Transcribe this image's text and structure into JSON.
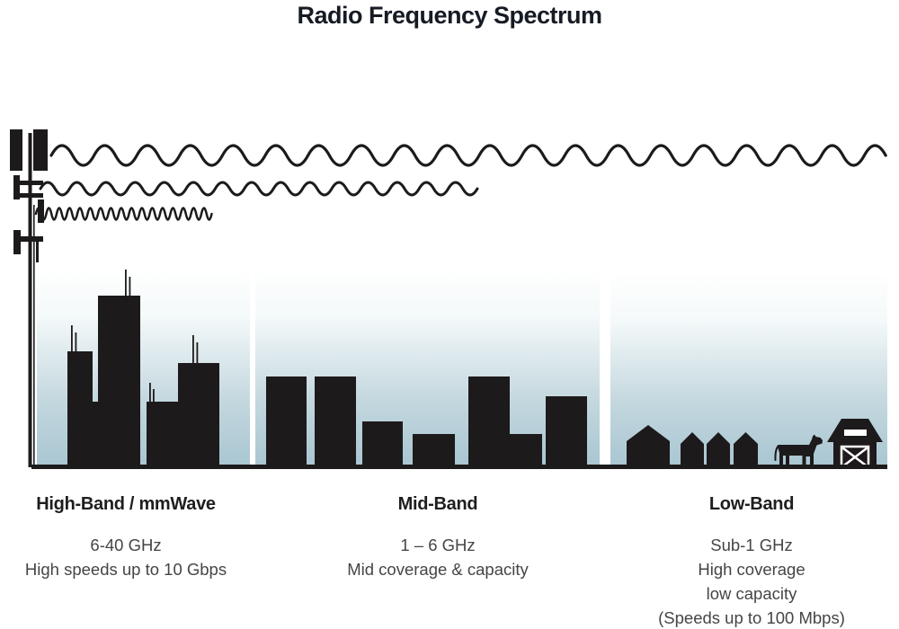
{
  "title": "Radio Frequency Spectrum",
  "colors": {
    "ink": "#1d1a1b",
    "title_text": "#161b24",
    "heading_text": "#1e1e1e",
    "body_text": "#454545",
    "sky_top": "#ffffff",
    "sky_upper": "#f4f9fa",
    "sky_lower": "#c3d7de",
    "sky_bottom": "#a9c6d2"
  },
  "bands": [
    {
      "heading": "High-Band / mmWave",
      "lines": [
        "6-40 GHz",
        "High speeds up to 10 Gbps"
      ]
    },
    {
      "heading": "Mid-Band",
      "lines": [
        "1 – 6 GHz",
        "Mid coverage & capacity"
      ]
    },
    {
      "heading": "Low-Band",
      "lines": [
        "Sub-1 GHz",
        "High coverage",
        "low capacity",
        "(Speeds up to 100 Mbps)"
      ]
    }
  ],
  "illustration": {
    "transmitter": "cell-tower-icon",
    "waves": [
      {
        "icon": "long-wave-icon",
        "band": "Low-Band",
        "reach": "longest"
      },
      {
        "icon": "medium-wave-icon",
        "band": "Mid-Band",
        "reach": "medium"
      },
      {
        "icon": "short-wave-icon",
        "band": "High-Band / mmWave",
        "reach": "shortest"
      }
    ],
    "scenes": [
      {
        "icon": "city-skyline-icon",
        "band": "High-Band / mmWave"
      },
      {
        "icon": "midrise-buildings-icon",
        "band": "Mid-Band"
      },
      {
        "icon": "houses-cow-barn-icon",
        "band": "Low-Band"
      }
    ]
  }
}
